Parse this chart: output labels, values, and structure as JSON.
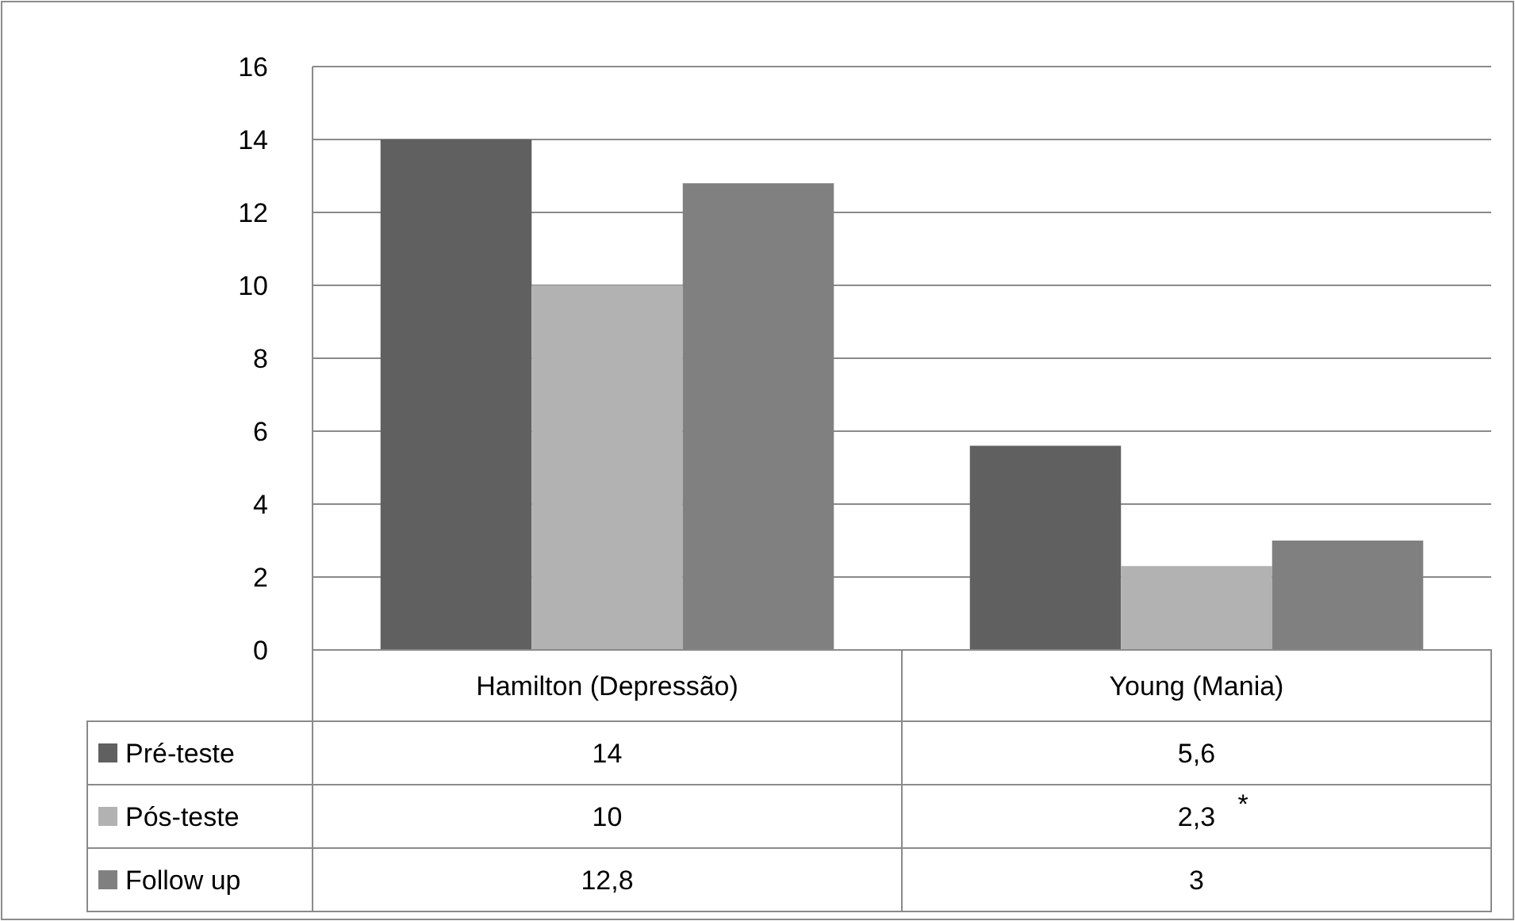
{
  "chart_data": {
    "type": "bar",
    "categories": [
      "Hamilton (Depressão)",
      "Young (Mania)"
    ],
    "series": [
      {
        "name": "Pré-teste",
        "color": "#606060",
        "values": [
          14,
          5.6
        ],
        "value_labels": [
          "14",
          "5,6"
        ]
      },
      {
        "name": "Pós-teste",
        "color": "#b2b2b2",
        "values": [
          10,
          2.3
        ],
        "value_labels": [
          "10",
          "2,3"
        ]
      },
      {
        "name": "Follow up",
        "color": "#808080",
        "values": [
          12.8,
          3
        ],
        "value_labels": [
          "12,8",
          "3"
        ]
      }
    ],
    "ylim": [
      0,
      16
    ],
    "yticks": [
      0,
      2,
      4,
      6,
      8,
      10,
      12,
      14,
      16
    ],
    "grid": "y",
    "legend": "bottom",
    "annotations": [
      "*"
    ]
  }
}
